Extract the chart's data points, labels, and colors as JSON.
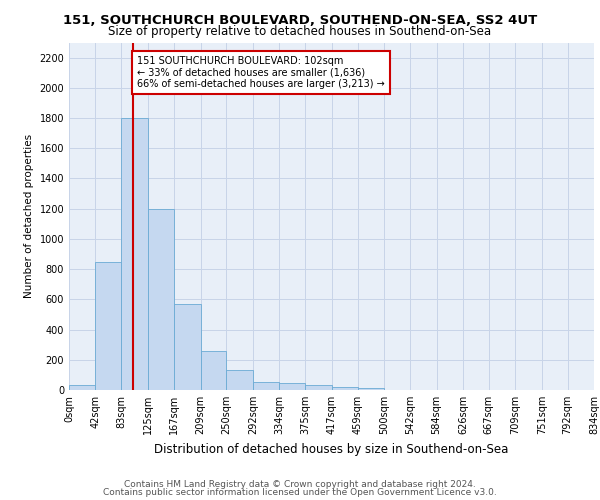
{
  "title1": "151, SOUTHCHURCH BOULEVARD, SOUTHEND-ON-SEA, SS2 4UT",
  "title2": "Size of property relative to detached houses in Southend-on-Sea",
  "xlabel": "Distribution of detached houses by size in Southend-on-Sea",
  "ylabel": "Number of detached properties",
  "footer1": "Contains HM Land Registry data © Crown copyright and database right 2024.",
  "footer2": "Contains public sector information licensed under the Open Government Licence v3.0.",
  "annotation_line1": "151 SOUTHCHURCH BOULEVARD: 102sqm",
  "annotation_line2": "← 33% of detached houses are smaller (1,636)",
  "annotation_line3": "66% of semi-detached houses are larger (3,213) →",
  "property_size": 102,
  "bar_edges": [
    0,
    42,
    83,
    125,
    167,
    209,
    250,
    292,
    334,
    375,
    417,
    459,
    500,
    542,
    584,
    626,
    667,
    709,
    751,
    792,
    834
  ],
  "bar_heights": [
    30,
    850,
    1800,
    1200,
    570,
    260,
    130,
    50,
    45,
    30,
    20,
    10,
    0,
    0,
    0,
    0,
    0,
    0,
    0,
    0
  ],
  "bar_color": "#c5d8f0",
  "bar_edgecolor": "#6aaad4",
  "redline_color": "#cc0000",
  "annotation_box_edgecolor": "#cc0000",
  "annotation_box_facecolor": "#ffffff",
  "grid_color": "#c8d4e8",
  "background_color": "#e8eff8",
  "ylim": [
    0,
    2300
  ],
  "yticks": [
    0,
    200,
    400,
    600,
    800,
    1000,
    1200,
    1400,
    1600,
    1800,
    2000,
    2200
  ],
  "title1_fontsize": 9.5,
  "title2_fontsize": 8.5,
  "xlabel_fontsize": 8.5,
  "ylabel_fontsize": 7.5,
  "tick_fontsize": 7.0,
  "annotation_fontsize": 7.0,
  "footer_fontsize": 6.5
}
